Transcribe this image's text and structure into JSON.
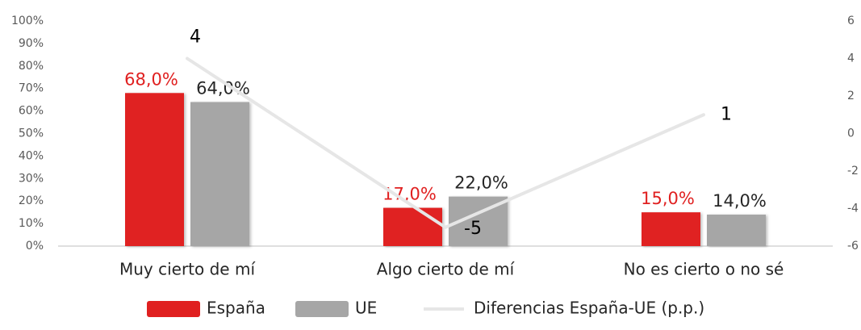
{
  "chart_data": {
    "type": "bar",
    "categories": [
      "Muy cierto de mí",
      "Algo cierto de mí",
      "No es cierto o no sé"
    ],
    "series": [
      {
        "name": "España",
        "color": "#e02020",
        "values": [
          68,
          17,
          15
        ],
        "value_labels": [
          "68,0%",
          "17,0%",
          "15,0%"
        ]
      },
      {
        "name": "UE",
        "color": "#a6a6a6",
        "values": [
          64,
          22,
          14
        ],
        "value_labels": [
          "64,0%",
          "22,0%",
          "14,0%"
        ]
      },
      {
        "name": "Diferencias España-UE (p.p.)",
        "type": "line",
        "axis": "y2",
        "color": "#e6e6e6",
        "values": [
          4,
          -5,
          1
        ]
      }
    ],
    "ylim": [
      0,
      100
    ],
    "yticks": [
      {
        "value": 0,
        "label": "0%"
      },
      {
        "value": 10,
        "label": "10%"
      },
      {
        "value": 20,
        "label": "20%"
      },
      {
        "value": 30,
        "label": "30%"
      },
      {
        "value": 40,
        "label": "40%"
      },
      {
        "value": 50,
        "label": "50%"
      },
      {
        "value": 60,
        "label": "60%"
      },
      {
        "value": 70,
        "label": "70%"
      },
      {
        "value": 80,
        "label": "80%"
      },
      {
        "value": 90,
        "label": "90%"
      },
      {
        "value": 100,
        "label": "100%"
      }
    ],
    "y2lim": [
      -6,
      6
    ],
    "y2ticks": [
      -6,
      -4,
      -2,
      0,
      2,
      4,
      6
    ],
    "legend": "bottom"
  }
}
